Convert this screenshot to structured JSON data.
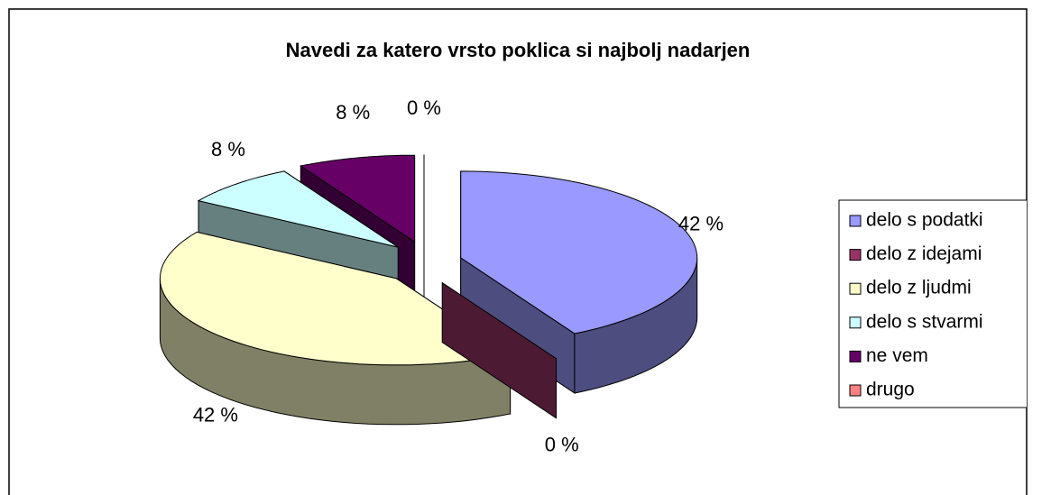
{
  "chart_data": {
    "type": "pie",
    "title": "Navedi za katero vrsto poklica si najbolj nadarjen",
    "categories": [
      "delo s podatki",
      "delo z idejami",
      "delo z ljudmi",
      "delo s stvarmi",
      "ne vem",
      "drugo"
    ],
    "values": [
      42,
      0,
      42,
      8,
      8,
      0
    ],
    "value_labels": [
      "42 %",
      "0 %",
      "42 %",
      "8 %",
      "8 %",
      "0 %"
    ],
    "colors": [
      "#9999ff",
      "#993366",
      "#ffffcc",
      "#ccffff",
      "#660066",
      "#ff8080"
    ],
    "legend": "right"
  }
}
